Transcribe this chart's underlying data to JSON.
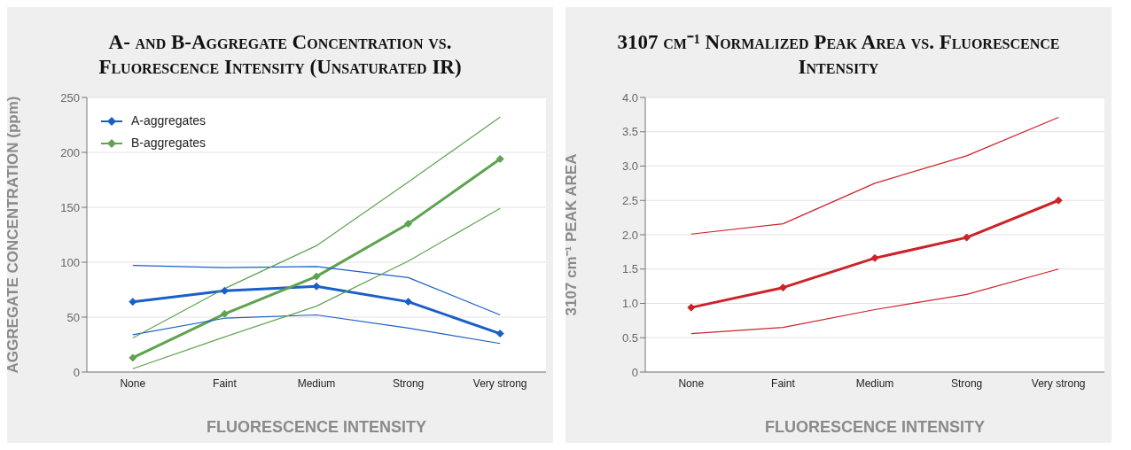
{
  "chart_data": [
    {
      "type": "line",
      "title": "A- and B-Aggregate Concentration vs. Fluorescence Intensity (Unsaturated IR)",
      "xlabel": "FLUORESCENCE INTENSITY",
      "ylabel": "AGGREGATE CONCENTRATION (ppm)",
      "categories": [
        "None",
        "Faint",
        "Medium",
        "Strong",
        "Very strong"
      ],
      "series": [
        {
          "name": "A-aggregates",
          "color": "#1a5fc8",
          "marker": "diamond",
          "values": [
            64,
            74,
            78,
            64,
            35
          ]
        },
        {
          "name": "B-aggregates",
          "color": "#5ea34f",
          "marker": "diamond",
          "values": [
            13,
            53,
            87,
            135,
            194
          ]
        },
        {
          "color": "#1a5fc8",
          "marker": "none",
          "values": [
            97,
            95,
            96,
            86,
            52
          ]
        },
        {
          "color": "#1a5fc8",
          "marker": "none",
          "values": [
            34,
            49,
            52,
            40,
            26
          ]
        },
        {
          "color": "#5ea34f",
          "marker": "none",
          "values": [
            31,
            76,
            115,
            173,
            232
          ]
        },
        {
          "color": "#5ea34f",
          "marker": "none",
          "values": [
            3,
            32,
            60,
            101,
            149
          ]
        }
      ],
      "ylim": [
        0,
        250
      ],
      "yticks": [
        0,
        50,
        100,
        150,
        200,
        250
      ],
      "grid": "y",
      "legend": "top left"
    },
    {
      "type": "line",
      "title": "3107 cm⁻¹ Normalized Peak Area vs. Fluorescence Intensity",
      "xlabel": "FLUORESCENCE INTENSITY",
      "ylabel": "3107 cm⁻¹ PEAK AREA",
      "categories": [
        "None",
        "Faint",
        "Medium",
        "Strong",
        "Very strong"
      ],
      "series": [
        {
          "color": "#cc2229",
          "marker": "diamond",
          "values": [
            0.94,
            1.23,
            1.66,
            1.96,
            2.5
          ]
        },
        {
          "color": "#cc2229",
          "marker": "none",
          "values": [
            2.01,
            2.16,
            2.75,
            3.15,
            3.71
          ]
        },
        {
          "color": "#cc2229",
          "marker": "none",
          "values": [
            0.56,
            0.65,
            0.91,
            1.13,
            1.5
          ]
        }
      ],
      "ylim": [
        0,
        4
      ],
      "yticks": [
        0,
        {
          "value": 0.5,
          "label": "0.5"
        },
        {
          "value": 1,
          "label": "1.0"
        },
        {
          "value": 1.5,
          "label": "1.5"
        },
        {
          "value": 2,
          "label": "2.0"
        },
        {
          "value": 2.5,
          "label": "2.5"
        },
        {
          "value": 3,
          "label": "3.0"
        },
        {
          "value": 3.5,
          "label": "3.5"
        },
        {
          "value": 4,
          "label": "4.0"
        }
      ],
      "grid": "y"
    }
  ]
}
